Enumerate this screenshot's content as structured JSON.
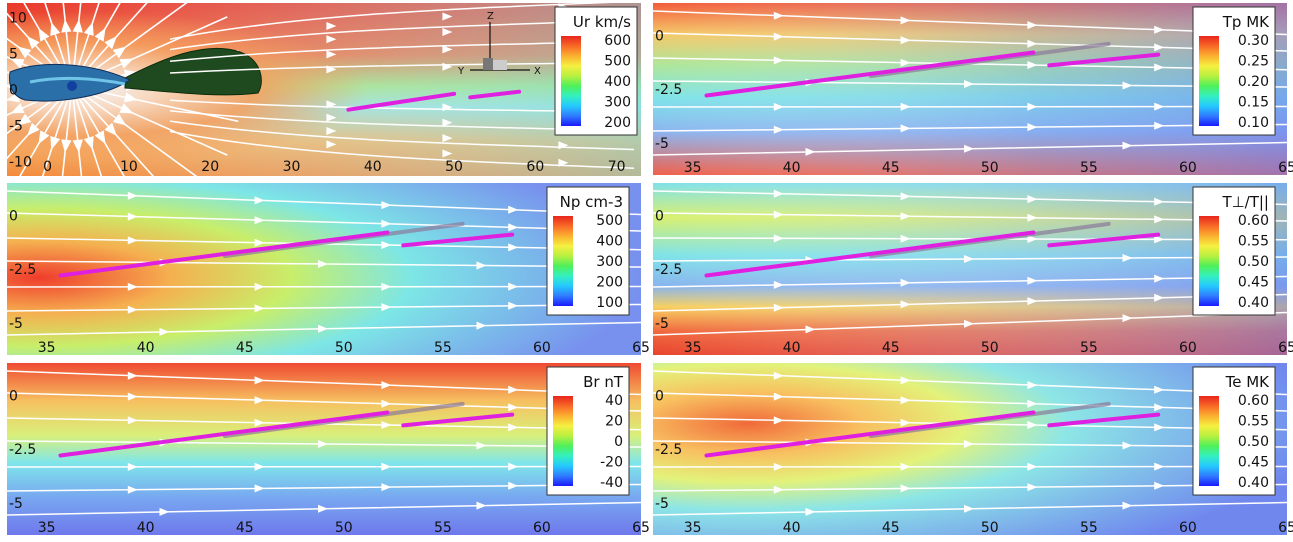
{
  "chart_data": [
    {
      "type": "heatmap",
      "panel": "top-left",
      "colorbar": {
        "title": "Ur km/s",
        "ticks": [
          "600",
          "500",
          "400",
          "300",
          "200"
        ],
        "range": [
          200,
          600
        ]
      },
      "x_ticks": [
        "0",
        "10",
        "20",
        "30",
        "40",
        "50",
        "60",
        "70"
      ],
      "y_ticks": [
        "10",
        "5",
        "0",
        "-5",
        "-10"
      ],
      "x_range": [
        -5,
        73
      ],
      "y_range": [
        -12,
        12
      ],
      "axes_triad": [
        "Z",
        "Y",
        "X"
      ],
      "trajectories": [
        {
          "color": "#e020e0",
          "x": [
            37,
            50
          ],
          "y": [
            -2.8,
            -0.6
          ]
        },
        {
          "color": "#e020e0",
          "x": [
            52,
            58
          ],
          "y": [
            -1.1,
            -0.3
          ]
        }
      ],
      "palette": [
        "#d62b1f",
        "#f28c3a",
        "#f5d060",
        "#9ad870",
        "#7fe6e6",
        "#6f8df0"
      ]
    },
    {
      "type": "heatmap",
      "panel": "top-right",
      "colorbar": {
        "title": "Tp MK",
        "ticks": [
          "0.30",
          "0.25",
          "0.20",
          "0.15",
          "0.10"
        ],
        "range": [
          0.1,
          0.3
        ]
      },
      "x_ticks": [
        "35",
        "40",
        "45",
        "50",
        "55",
        "60",
        "65"
      ],
      "y_ticks": [
        "0",
        "-2.5",
        "-5"
      ],
      "x_range": [
        33,
        65
      ],
      "y_range": [
        -6.5,
        1.5
      ],
      "trajectories": [
        {
          "color": "#e020e0",
          "x": [
            35.7,
            52.2
          ],
          "y": [
            -2.8,
            -0.8
          ]
        },
        {
          "color": "#e020e0",
          "x": [
            53,
            58.5
          ],
          "y": [
            -1.4,
            -0.9
          ]
        }
      ],
      "shadow": {
        "color": "#8a7a9a",
        "x": [
          44,
          56
        ],
        "y": [
          -1.9,
          -0.4
        ]
      }
    },
    {
      "type": "heatmap",
      "panel": "middle-left",
      "colorbar": {
        "title": "Np cm-3",
        "ticks": [
          "500",
          "400",
          "300",
          "200",
          "100"
        ],
        "range": [
          100,
          500
        ]
      },
      "x_ticks": [
        "35",
        "40",
        "45",
        "50",
        "55",
        "60",
        "65"
      ],
      "y_ticks": [
        "0",
        "-2.5",
        "-5"
      ],
      "x_range": [
        33,
        65
      ],
      "y_range": [
        -6.5,
        1.5
      ],
      "trajectories": [
        {
          "color": "#e020e0",
          "x": [
            35.7,
            52.2
          ],
          "y": [
            -2.8,
            -0.8
          ]
        },
        {
          "color": "#e020e0",
          "x": [
            53,
            58.5
          ],
          "y": [
            -1.4,
            -0.9
          ]
        }
      ],
      "shadow": {
        "color": "#8a7a9a",
        "x": [
          44,
          56
        ],
        "y": [
          -1.9,
          -0.4
        ]
      }
    },
    {
      "type": "heatmap",
      "panel": "middle-right",
      "colorbar": {
        "title": "T⊥/T||",
        "ticks": [
          "0.60",
          "0.55",
          "0.50",
          "0.45",
          "0.40"
        ],
        "range": [
          0.4,
          0.6
        ]
      },
      "x_ticks": [
        "35",
        "40",
        "45",
        "50",
        "55",
        "60",
        "65"
      ],
      "y_ticks": [
        "0",
        "-2.5",
        "-5"
      ],
      "x_range": [
        33,
        65
      ],
      "y_range": [
        -6.5,
        1.5
      ],
      "trajectories": [
        {
          "color": "#e020e0",
          "x": [
            35.7,
            52.2
          ],
          "y": [
            -2.8,
            -0.8
          ]
        },
        {
          "color": "#e020e0",
          "x": [
            53,
            58.5
          ],
          "y": [
            -1.4,
            -0.9
          ]
        }
      ],
      "shadow": {
        "color": "#8a7a9a",
        "x": [
          44,
          56
        ],
        "y": [
          -1.9,
          -0.4
        ]
      }
    },
    {
      "type": "heatmap",
      "panel": "bottom-left",
      "colorbar": {
        "title": "Br nT",
        "ticks": [
          "40",
          "20",
          "0",
          "-20",
          "-40"
        ],
        "range": [
          -40,
          40
        ]
      },
      "x_ticks": [
        "35",
        "40",
        "45",
        "50",
        "55",
        "60",
        "65"
      ],
      "y_ticks": [
        "0",
        "-2.5",
        "-5"
      ],
      "x_range": [
        33,
        65
      ],
      "y_range": [
        -6.5,
        1.5
      ],
      "trajectories": [
        {
          "color": "#e020e0",
          "x": [
            35.7,
            52.2
          ],
          "y": [
            -2.8,
            -0.8
          ]
        },
        {
          "color": "#e020e0",
          "x": [
            53,
            58.5
          ],
          "y": [
            -1.4,
            -0.9
          ]
        }
      ],
      "shadow": {
        "color": "#8a7a9a",
        "x": [
          44,
          56
        ],
        "y": [
          -1.9,
          -0.4
        ]
      }
    },
    {
      "type": "heatmap",
      "panel": "bottom-right",
      "colorbar": {
        "title": "Te MK",
        "ticks": [
          "0.60",
          "0.55",
          "0.50",
          "0.45",
          "0.40"
        ],
        "range": [
          0.4,
          0.6
        ]
      },
      "x_ticks": [
        "35",
        "40",
        "45",
        "50",
        "55",
        "60",
        "65"
      ],
      "y_ticks": [
        "0",
        "-2.5",
        "-5"
      ],
      "x_range": [
        33,
        65
      ],
      "y_range": [
        -6.5,
        1.5
      ],
      "trajectories": [
        {
          "color": "#e020e0",
          "x": [
            35.7,
            52.2
          ],
          "y": [
            -2.8,
            -0.8
          ]
        },
        {
          "color": "#e020e0",
          "x": [
            53,
            58.5
          ],
          "y": [
            -1.4,
            -0.9
          ]
        }
      ],
      "shadow": {
        "color": "#8a7a9a",
        "x": [
          44,
          56
        ],
        "y": [
          -1.9,
          -0.4
        ]
      }
    }
  ],
  "colormap": [
    "#1a1aff",
    "#2f7bff",
    "#25c8ff",
    "#34f0c0",
    "#4ef05a",
    "#b8f040",
    "#f5f040",
    "#fbb030",
    "#f86a26",
    "#e8251e"
  ]
}
